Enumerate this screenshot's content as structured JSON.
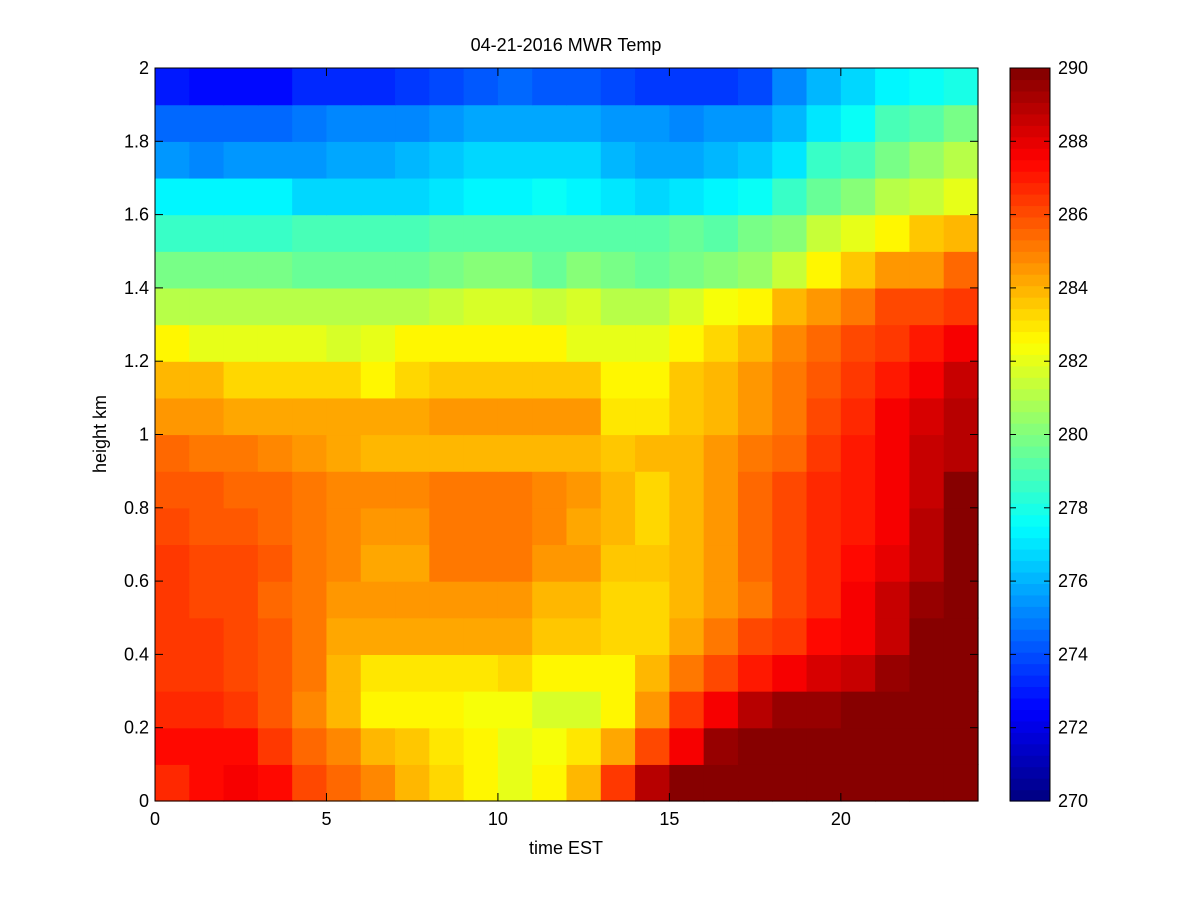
{
  "chart_data": {
    "type": "heatmap",
    "title": "04-21-2016 MWR Temp",
    "xlabel": "time EST",
    "ylabel": "height km",
    "xlim": [
      0,
      24
    ],
    "ylim": [
      0,
      2
    ],
    "xticks": [
      0,
      5,
      10,
      15,
      20
    ],
    "yticks": [
      0,
      0.2,
      0.4,
      0.6,
      0.8,
      1,
      1.2,
      1.4,
      1.6,
      1.8,
      2
    ],
    "colorbar": {
      "range": [
        270,
        290
      ],
      "ticks": [
        270,
        272,
        274,
        276,
        278,
        280,
        282,
        284,
        286,
        288,
        290
      ],
      "colormap": "jet",
      "levels": 64
    },
    "x": [
      0,
      1,
      2,
      3,
      4,
      5,
      6,
      7,
      8,
      9,
      10,
      11,
      12,
      13,
      14,
      15,
      16,
      17,
      18,
      19,
      20,
      21,
      22,
      23
    ],
    "y": [
      0,
      0.1,
      0.2,
      0.3,
      0.4,
      0.5,
      0.6,
      0.7,
      0.8,
      0.9,
      1.0,
      1.1,
      1.2,
      1.3,
      1.4,
      1.5,
      1.6,
      1.7,
      1.8,
      1.9,
      2.0
    ],
    "z": [
      [
        286.8,
        287.4,
        287.8,
        287.2,
        286.2,
        285.5,
        284.8,
        284.0,
        283.2,
        282.6,
        282.0,
        282.6,
        283.8,
        286.5,
        288.8,
        290.0,
        290.0,
        290.0,
        290.0,
        290.0,
        290.0,
        290.0,
        290.0,
        290.0
      ],
      [
        287.2,
        287.2,
        287.2,
        286.5,
        285.5,
        284.8,
        283.8,
        283.5,
        283.0,
        282.5,
        282.0,
        282.3,
        283.0,
        284.2,
        286.0,
        287.8,
        289.5,
        290.0,
        290.0,
        290.0,
        290.0,
        290.0,
        290.0,
        290.0
      ],
      [
        286.6,
        286.8,
        286.5,
        285.8,
        284.8,
        284.0,
        282.6,
        282.6,
        282.6,
        282.2,
        282.2,
        281.8,
        281.8,
        282.6,
        284.6,
        286.5,
        287.5,
        289.0,
        289.6,
        289.6,
        290.0,
        290.0,
        290.0,
        290.0
      ],
      [
        286.5,
        286.3,
        286.2,
        285.9,
        285.3,
        283.8,
        283.0,
        283.0,
        283.0,
        283.0,
        283.2,
        282.8,
        282.8,
        282.8,
        283.8,
        285.2,
        286.0,
        287.0,
        287.5,
        288.2,
        288.7,
        289.5,
        290.0,
        290.0
      ],
      [
        286.5,
        286.3,
        286.2,
        285.9,
        285.3,
        284.3,
        284.2,
        284.2,
        284.2,
        284.2,
        284.2,
        283.5,
        283.5,
        283.2,
        283.2,
        284.3,
        285.3,
        286.0,
        286.5,
        287.2,
        287.8,
        288.7,
        290.0,
        290.0
      ],
      [
        286.3,
        286.2,
        286.0,
        285.6,
        285.0,
        284.5,
        284.5,
        284.5,
        284.5,
        284.5,
        284.5,
        283.8,
        283.8,
        283.2,
        283.2,
        283.8,
        284.5,
        285.3,
        286.0,
        286.8,
        287.5,
        288.5,
        289.5,
        290.0
      ],
      [
        286.3,
        286.2,
        286.0,
        285.7,
        285.3,
        284.8,
        284.3,
        284.3,
        285.0,
        285.0,
        285.0,
        284.5,
        284.5,
        283.6,
        283.6,
        284.0,
        284.5,
        285.5,
        286.0,
        286.8,
        287.2,
        288.0,
        289.0,
        290.0
      ],
      [
        286.0,
        285.9,
        285.7,
        285.4,
        285.1,
        284.8,
        284.5,
        284.5,
        285.0,
        285.0,
        285.0,
        284.8,
        284.2,
        283.8,
        283.2,
        284.0,
        284.5,
        285.5,
        286.0,
        286.8,
        287.0,
        287.8,
        288.8,
        290.0
      ],
      [
        285.8,
        285.7,
        285.5,
        285.4,
        285.1,
        284.9,
        284.7,
        284.7,
        285.0,
        285.0,
        285.0,
        284.8,
        284.4,
        283.8,
        283.2,
        284.0,
        284.5,
        285.5,
        286.0,
        286.8,
        287.0,
        287.6,
        288.6,
        290.0
      ],
      [
        285.5,
        285.2,
        285.0,
        284.8,
        284.5,
        284.2,
        284.0,
        284.0,
        284.0,
        284.0,
        284.0,
        284.0,
        284.0,
        283.5,
        283.8,
        284.0,
        284.5,
        285.0,
        285.6,
        286.5,
        287.0,
        287.8,
        288.5,
        289.0
      ],
      [
        284.6,
        284.6,
        284.3,
        284.3,
        284.3,
        284.3,
        284.3,
        284.3,
        284.5,
        284.5,
        284.5,
        284.5,
        284.5,
        283.0,
        283.0,
        283.5,
        284.0,
        284.5,
        285.3,
        286.0,
        286.8,
        287.5,
        288.3,
        289.0
      ],
      [
        283.8,
        283.8,
        283.3,
        283.3,
        283.3,
        283.3,
        282.5,
        283.3,
        283.5,
        283.5,
        283.5,
        283.5,
        283.5,
        282.5,
        282.5,
        283.5,
        284.0,
        284.5,
        285.3,
        285.8,
        286.5,
        287.0,
        287.8,
        288.5
      ],
      [
        282.5,
        282.0,
        282.0,
        282.0,
        282.0,
        281.6,
        282.0,
        282.5,
        282.5,
        282.5,
        282.5,
        282.5,
        282.0,
        282.0,
        282.0,
        282.5,
        283.3,
        284.0,
        284.8,
        285.5,
        286.0,
        286.5,
        287.0,
        287.5
      ],
      [
        281.0,
        281.0,
        281.0,
        281.0,
        281.0,
        281.0,
        281.0,
        281.0,
        281.3,
        281.6,
        281.6,
        281.3,
        281.6,
        281.0,
        281.0,
        281.6,
        282.2,
        282.8,
        284.0,
        284.6,
        285.0,
        286.0,
        286.0,
        286.5
      ],
      [
        279.8,
        279.8,
        279.8,
        279.8,
        279.5,
        279.5,
        279.5,
        279.5,
        279.8,
        280.0,
        280.0,
        279.5,
        280.0,
        279.8,
        279.5,
        279.8,
        280.0,
        280.5,
        281.5,
        282.5,
        283.5,
        284.5,
        284.5,
        285.5
      ],
      [
        278.5,
        278.5,
        278.5,
        278.5,
        278.8,
        278.8,
        278.8,
        278.8,
        279.2,
        279.2,
        279.2,
        279.2,
        279.2,
        279.2,
        279.2,
        279.5,
        279.2,
        279.8,
        280.0,
        281.5,
        282.0,
        282.8,
        283.5,
        284.0
      ],
      [
        277.3,
        277.3,
        277.3,
        277.3,
        276.6,
        276.6,
        276.6,
        276.8,
        277.0,
        277.4,
        277.4,
        277.6,
        277.4,
        277.0,
        276.8,
        277.0,
        277.4,
        277.8,
        278.5,
        279.5,
        280.3,
        281.0,
        281.5,
        282.0
      ],
      [
        275.5,
        275.0,
        275.5,
        275.5,
        275.5,
        275.8,
        275.8,
        276.0,
        276.5,
        276.8,
        276.8,
        276.8,
        276.8,
        276.0,
        275.8,
        275.8,
        276.0,
        276.5,
        277.0,
        278.5,
        279.0,
        279.8,
        280.5,
        281.0
      ],
      [
        274.5,
        274.5,
        274.5,
        274.5,
        274.8,
        275.0,
        275.0,
        275.3,
        275.5,
        275.8,
        275.8,
        275.8,
        275.8,
        275.5,
        275.5,
        275.3,
        275.5,
        275.5,
        276.0,
        277.0,
        277.8,
        278.8,
        279.2,
        279.8
      ],
      [
        273.0,
        272.8,
        272.8,
        272.8,
        273.2,
        273.2,
        273.2,
        273.5,
        274.0,
        274.3,
        274.6,
        274.3,
        274.2,
        274.0,
        273.6,
        273.6,
        273.6,
        274.0,
        275.0,
        276.0,
        276.6,
        277.2,
        277.7,
        278.0
      ],
      [
        272.0,
        272.0,
        272.0,
        272.0,
        272.4,
        272.5,
        272.6,
        272.4,
        273.2,
        273.4,
        273.4,
        273.4,
        273.4,
        273.4,
        273.2,
        273.2,
        273.2,
        273.2,
        274.0,
        274.8,
        275.5,
        276.0,
        276.5,
        277.0
      ]
    ]
  }
}
